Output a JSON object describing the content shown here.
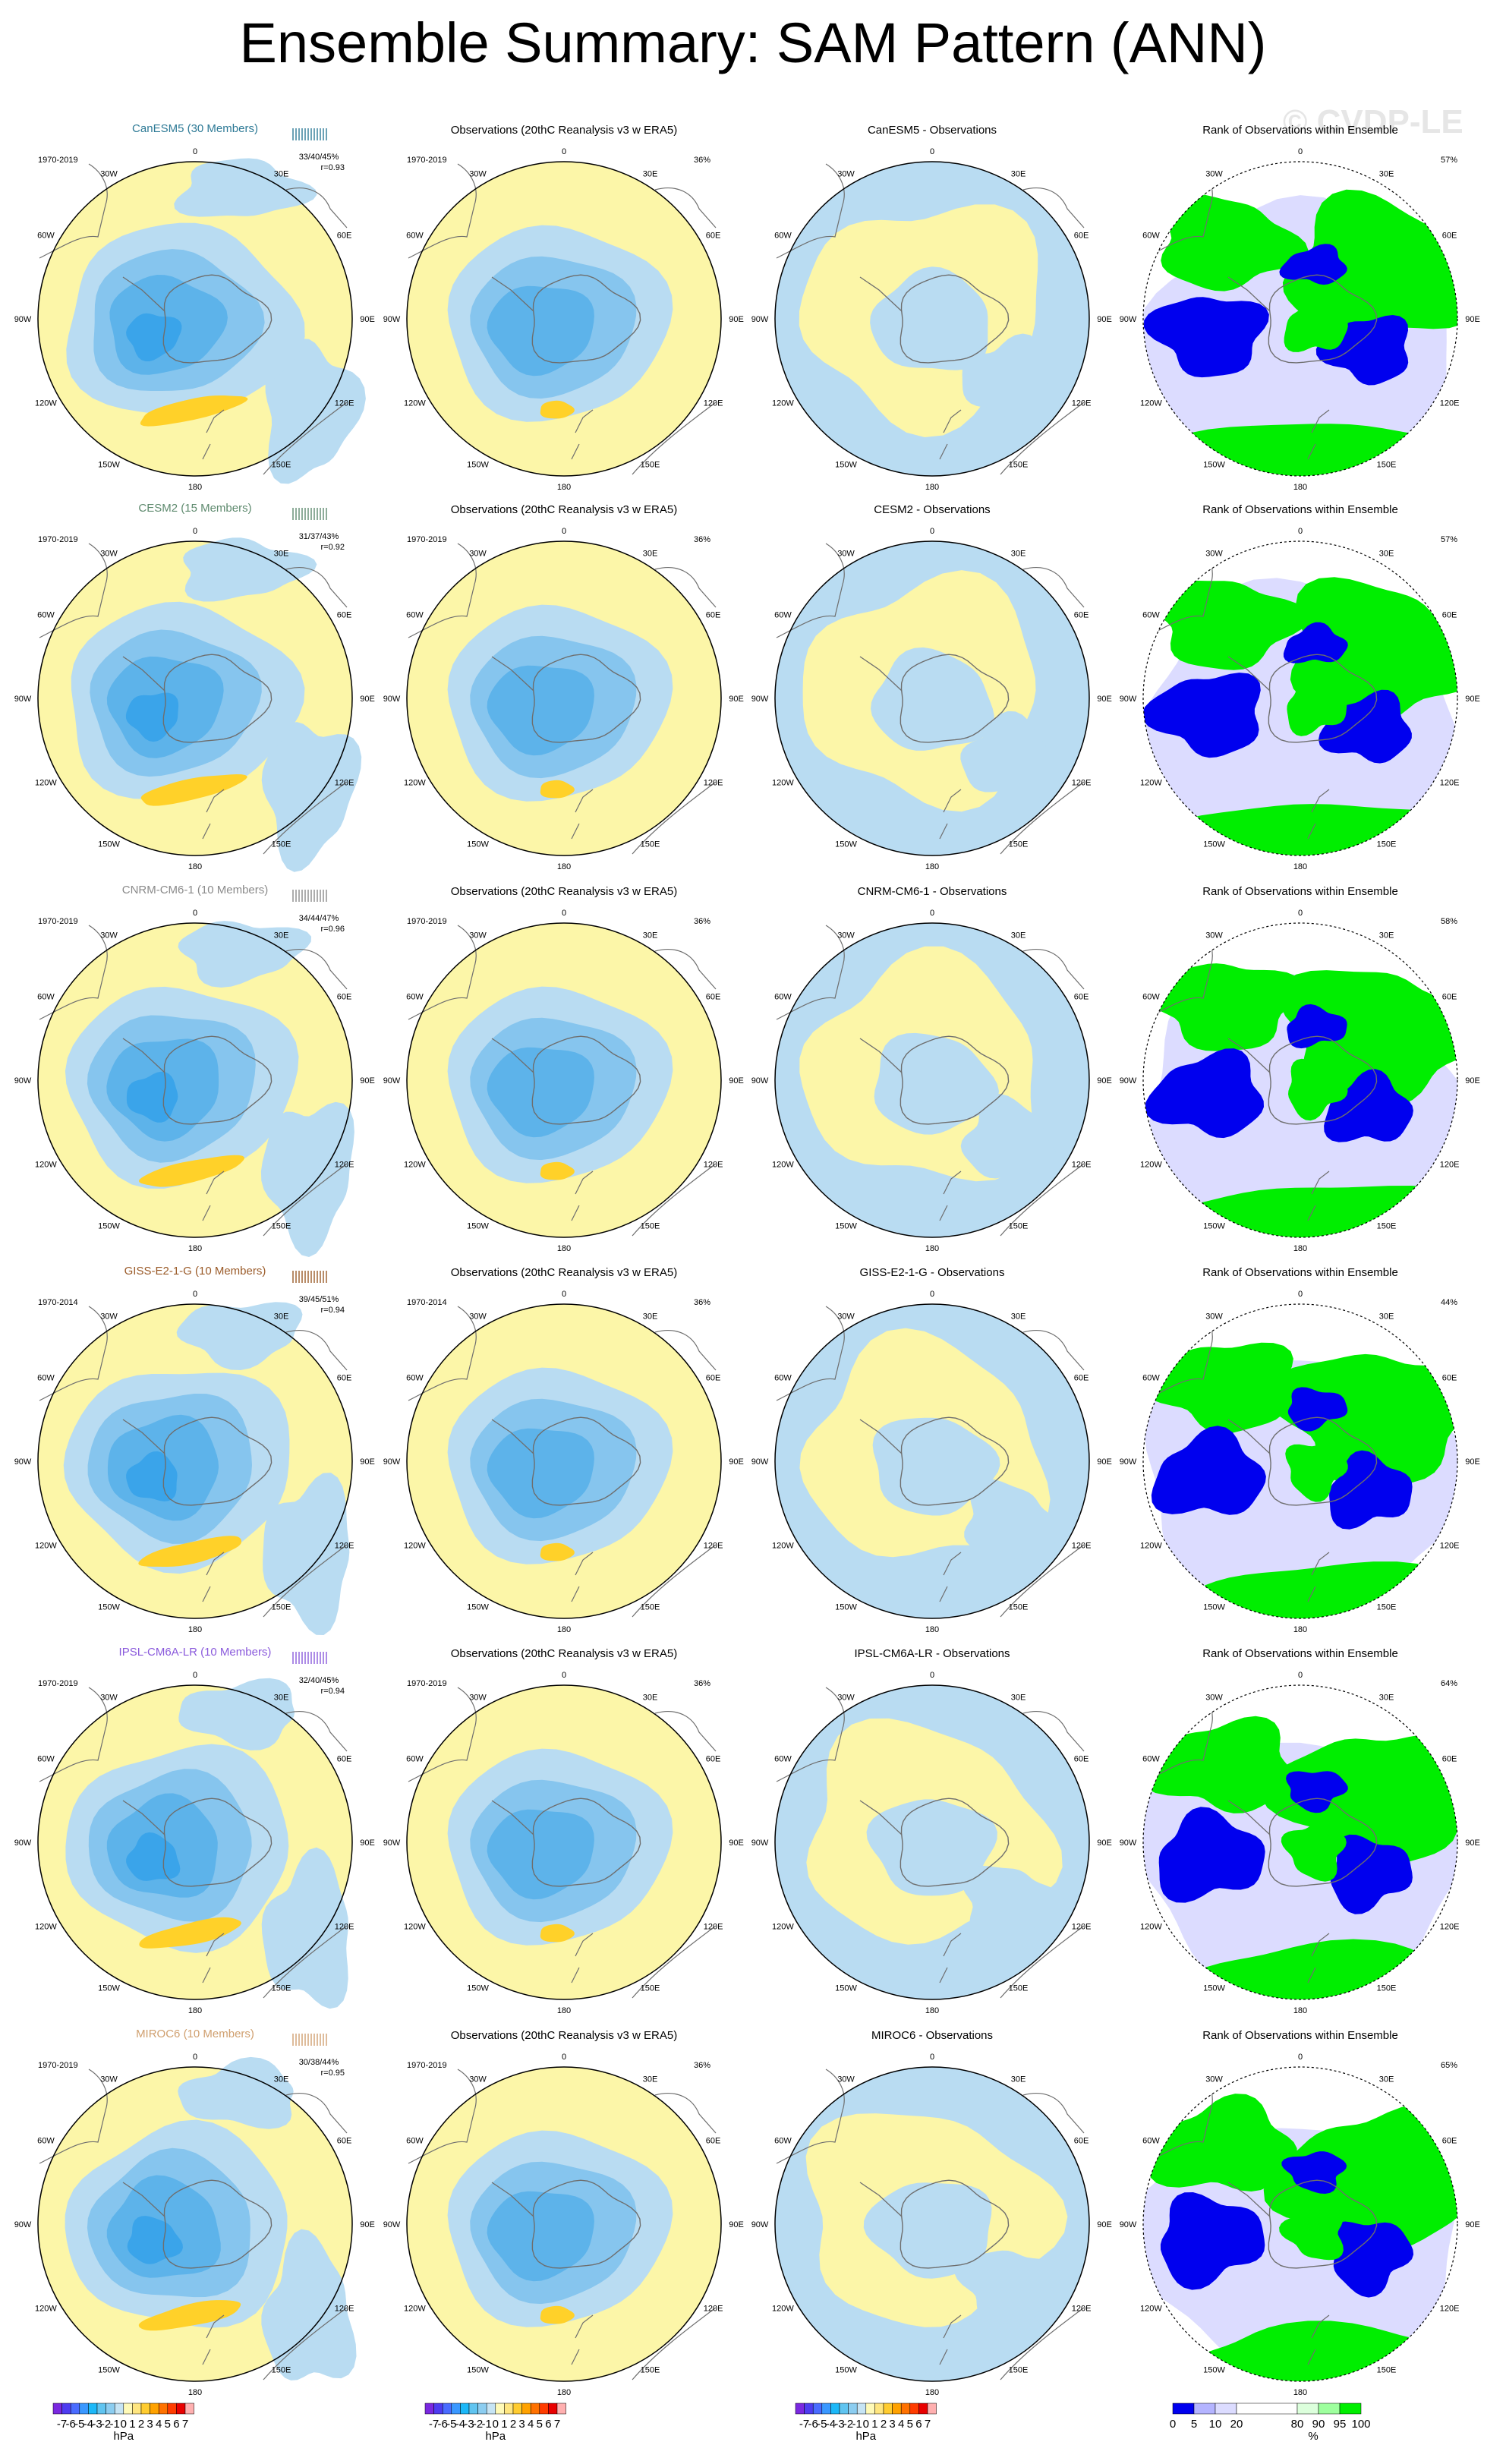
{
  "title": "Ensemble Summary: SAM Pattern (ANN)",
  "watermark": "© CVDP-LE",
  "colors": {
    "land_outline": "#6e6e6e",
    "contour_neg": [
      "#6c28e0",
      "#4040ff",
      "#4a78ff",
      "#3aa8ff",
      "#00c8ff",
      "#60c0f0",
      "#80c8f0",
      "#b4dcf0"
    ],
    "contour_pos": [
      "#ffffb0",
      "#ffe880",
      "#ffcc33",
      "#ffaa00",
      "#ff7000",
      "#ff3c00",
      "#e00000",
      "#c00000",
      "#ffb4b4"
    ],
    "rank": {
      "blue": "#0000ee",
      "lightblue": "#b4b4ff",
      "pale": "#dcdcff",
      "white": "#ffffff",
      "palegreen": "#dcffdc",
      "lightgreen": "#9eff9e",
      "green": "#00ee00"
    },
    "models": {
      "CanESM5": "#2e7a96",
      "CESM2": "#5e8a6e",
      "CNRM-CM6-1": "#8a8a8a",
      "GISS-E2-1-G": "#9a5a28",
      "IPSL-CM6A-LR": "#8a5adc",
      "MIROC6": "#d0a070"
    }
  },
  "columns": {
    "obs_title": "Observations (20thC Reanalysis v3 w ERA5)",
    "rank_title": "Rank of Observations within Ensemble"
  },
  "longitude_labels": [
    "0",
    "30E",
    "60E",
    "90E",
    "120E",
    "150E",
    "180",
    "150W",
    "120W",
    "90W",
    "60W",
    "30W"
  ],
  "rows": [
    {
      "model": "CanESM5",
      "model_title": "CanESM5 (30 Members)",
      "period": "1970-2019",
      "obs_period": "1970-2019",
      "stats": "33/40/45%",
      "r": "r=0.93",
      "obs_pct": "36%",
      "diff_title": "CanESM5 - Observations",
      "rank_pct": "57%"
    },
    {
      "model": "CESM2",
      "model_title": "CESM2 (15 Members)",
      "period": "1970-2019",
      "obs_period": "1970-2019",
      "stats": "31/37/43%",
      "r": "r=0.92",
      "obs_pct": "36%",
      "diff_title": "CESM2 - Observations",
      "rank_pct": "57%"
    },
    {
      "model": "CNRM-CM6-1",
      "model_title": "CNRM-CM6-1 (10 Members)",
      "period": "1970-2019",
      "obs_period": "1970-2019",
      "stats": "34/44/47%",
      "r": "r=0.96",
      "obs_pct": "36%",
      "diff_title": "CNRM-CM6-1 - Observations",
      "rank_pct": "58%"
    },
    {
      "model": "GISS-E2-1-G",
      "model_title": "GISS-E2-1-G (10 Members)",
      "period": "1970-2014",
      "obs_period": "1970-2014",
      "stats": "39/45/51%",
      "r": "r=0.94",
      "obs_pct": "36%",
      "diff_title": "GISS-E2-1-G - Observations",
      "rank_pct": "44%"
    },
    {
      "model": "IPSL-CM6A-LR",
      "model_title": "IPSL-CM6A-LR (10 Members)",
      "period": "1970-2019",
      "obs_period": "1970-2019",
      "stats": "32/40/45%",
      "r": "r=0.94",
      "obs_pct": "36%",
      "diff_title": "IPSL-CM6A-LR - Observations",
      "rank_pct": "64%"
    },
    {
      "model": "MIROC6",
      "model_title": "MIROC6 (10 Members)",
      "period": "1970-2019",
      "obs_period": "1970-2019",
      "stats": "30/38/44%",
      "r": "r=0.95",
      "obs_pct": "36%",
      "diff_title": "MIROC6 - Observations",
      "rank_pct": "65%"
    }
  ],
  "colorbar": {
    "hpa_labels": [
      "-7",
      "-6",
      "-5",
      "-4",
      "-3",
      "-2",
      "-1",
      "0",
      "1",
      "2",
      "3",
      "4",
      "5",
      "6",
      "7"
    ],
    "hpa_unit": "hPa",
    "rank_labels": [
      "0",
      "5",
      "10",
      "20",
      "80",
      "90",
      "95",
      "100"
    ],
    "rank_unit": "%"
  }
}
